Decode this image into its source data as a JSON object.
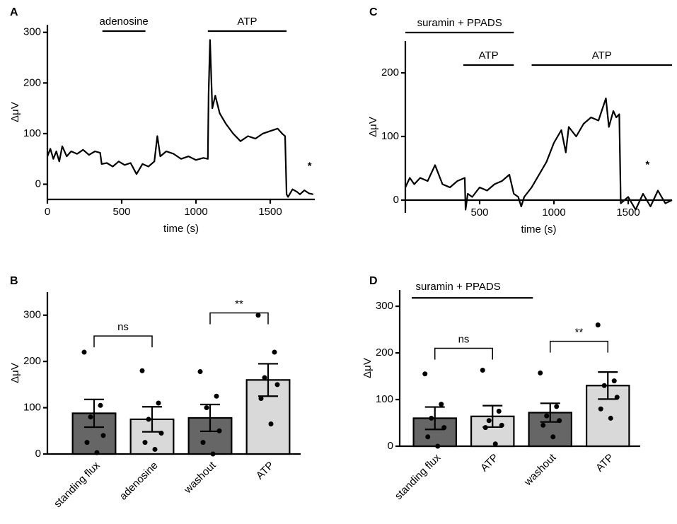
{
  "chart_data": [
    {
      "panel": "A",
      "type": "line",
      "x_label": "time (s)",
      "y_label": "ΔμV",
      "color": "#000000",
      "xaxis_position": "bottom",
      "x": [
        0,
        20,
        40,
        60,
        80,
        100,
        130,
        160,
        200,
        240,
        280,
        320,
        355,
        365,
        400,
        440,
        480,
        520,
        560,
        600,
        640,
        680,
        720,
        740,
        760,
        800,
        850,
        900,
        950,
        1000,
        1050,
        1080,
        1085,
        1095,
        1110,
        1130,
        1160,
        1200,
        1250,
        1300,
        1350,
        1400,
        1450,
        1500,
        1550,
        1580,
        1600,
        1610,
        1620,
        1650,
        1680,
        1700,
        1730,
        1760,
        1790
      ],
      "values": [
        55,
        70,
        50,
        65,
        45,
        75,
        55,
        65,
        60,
        68,
        58,
        65,
        62,
        40,
        42,
        35,
        45,
        38,
        42,
        20,
        40,
        35,
        45,
        95,
        55,
        65,
        60,
        50,
        55,
        48,
        52,
        50,
        180,
        285,
        150,
        175,
        140,
        120,
        100,
        85,
        95,
        90,
        100,
        105,
        110,
        100,
        95,
        -20,
        -25,
        -10,
        -15,
        -20,
        -12,
        -18,
        -20
      ],
      "xlim": [
        0,
        1800
      ],
      "xticks": [
        0,
        500,
        1000,
        1500
      ],
      "ylim": [
        -30,
        315
      ],
      "yticks": [
        0,
        100,
        200,
        300
      ],
      "intervals": [
        {
          "label": "adenosine",
          "start": 370,
          "end": 660,
          "row": 0
        },
        {
          "label": "ATP",
          "start": 1080,
          "end": 1610,
          "row": 0
        }
      ],
      "annotations": [
        {
          "text": "*",
          "x": 1765,
          "y": 35
        }
      ]
    },
    {
      "panel": "B",
      "type": "bar",
      "y_label": "ΔμV",
      "categories": [
        "standing flux",
        "adenosine",
        "washout",
        "ATP"
      ],
      "values": [
        88,
        75,
        78,
        160
      ],
      "errors": [
        30,
        27,
        29,
        35
      ],
      "points": [
        [
          220,
          105,
          80,
          40,
          25,
          3
        ],
        [
          180,
          110,
          75,
          45,
          25,
          10
        ],
        [
          178,
          125,
          100,
          50,
          25,
          0
        ],
        [
          300,
          220,
          165,
          150,
          120,
          65
        ]
      ],
      "colors": [
        "#666666",
        "#d9d9d9",
        "#666666",
        "#d9d9d9"
      ],
      "ylim": [
        0,
        350
      ],
      "yticks": [
        0,
        100,
        200,
        300
      ],
      "comparisons": [
        {
          "pair": [
            0,
            1
          ],
          "label": "ns",
          "y": 255
        },
        {
          "pair": [
            2,
            3
          ],
          "label": "**",
          "y": 305
        }
      ]
    },
    {
      "panel": "C",
      "type": "line",
      "x_label": "time (s)",
      "y_label": "ΔμV",
      "color": "#000000",
      "xaxis_position": "zero",
      "x": [
        0,
        30,
        60,
        100,
        150,
        200,
        250,
        300,
        350,
        400,
        405,
        420,
        450,
        500,
        550,
        600,
        650,
        700,
        730,
        760,
        780,
        800,
        850,
        900,
        950,
        1000,
        1050,
        1080,
        1100,
        1150,
        1200,
        1250,
        1300,
        1350,
        1370,
        1400,
        1420,
        1440,
        1450,
        1500,
        1550,
        1600,
        1650,
        1700,
        1750,
        1795
      ],
      "values": [
        20,
        35,
        25,
        35,
        30,
        55,
        25,
        20,
        30,
        35,
        -15,
        10,
        5,
        20,
        15,
        25,
        30,
        40,
        10,
        5,
        -10,
        5,
        20,
        40,
        60,
        90,
        110,
        75,
        115,
        100,
        120,
        130,
        125,
        160,
        115,
        140,
        130,
        135,
        -5,
        5,
        -15,
        10,
        -10,
        15,
        -5,
        0
      ],
      "xlim": [
        0,
        1795
      ],
      "xticks": [
        500,
        1000,
        1500
      ],
      "ylim": [
        -20,
        250
      ],
      "yticks": [
        0,
        100,
        200
      ],
      "intervals": [
        {
          "label": "suramin + PPADS",
          "start": 0,
          "end": 730,
          "row": 0
        },
        {
          "label": "ATP",
          "start": 390,
          "end": 730,
          "row": 1
        },
        {
          "label": "ATP",
          "start": 850,
          "end": 1795,
          "row": 1
        }
      ],
      "annotations": [
        {
          "text": "*",
          "x": 1630,
          "y": 55
        }
      ]
    },
    {
      "panel": "D",
      "type": "bar",
      "y_label": "ΔμV",
      "categories": [
        "standing flux",
        "ATP",
        "washout",
        "ATP"
      ],
      "values": [
        60,
        64,
        72,
        130
      ],
      "errors": [
        24,
        23,
        20,
        29
      ],
      "points": [
        [
          155,
          90,
          60,
          40,
          20,
          0
        ],
        [
          163,
          75,
          55,
          45,
          40,
          5
        ],
        [
          157,
          85,
          65,
          55,
          45,
          20
        ],
        [
          260,
          140,
          130,
          105,
          80,
          60
        ]
      ],
      "colors": [
        "#666666",
        "#d9d9d9",
        "#666666",
        "#d9d9d9"
      ],
      "ylim": [
        0,
        335
      ],
      "yticks": [
        0,
        100,
        200,
        300
      ],
      "comparisons": [
        {
          "pair": [
            0,
            1
          ],
          "label": "ns",
          "y": 210
        },
        {
          "pair": [
            2,
            3
          ],
          "label": "**",
          "y": 225
        }
      ],
      "intervals": [
        {
          "label": "suramin + PPADS",
          "y": 318
        }
      ]
    }
  ]
}
